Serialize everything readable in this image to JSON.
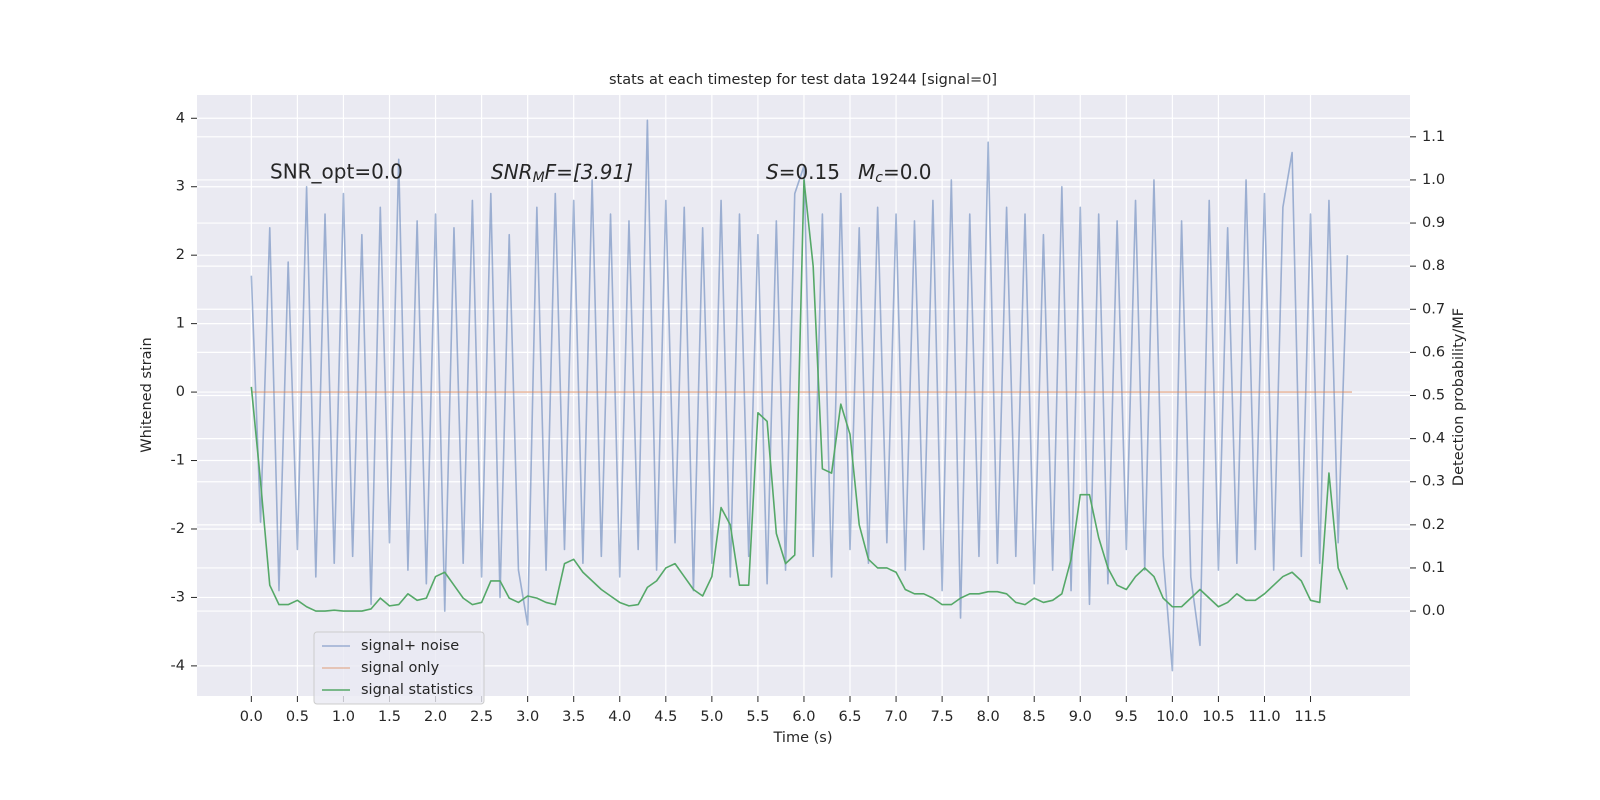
{
  "chart_data": {
    "type": "line",
    "title": "stats at each timestep for test data 19244 [signal=0]",
    "xlabel": "Time (s)",
    "ylabel": "Whitened strain",
    "y2label": "Detection probability/MF",
    "annotations": [
      "SNR_opt=0.0",
      [
        "SNR",
        "M",
        "F=[3.91]"
      ],
      [
        "S",
        "=0.15"
      ],
      [
        "M",
        "c",
        "=0.0"
      ]
    ],
    "xlim": [
      -0.59,
      12.58
    ],
    "ylim": [
      -4.44,
      4.34
    ],
    "y2lim": [
      -0.197,
      1.197
    ],
    "xticks": [
      {
        "value": 0,
        "label": "0.0"
      },
      0.5,
      {
        "value": 1,
        "label": "1.0"
      },
      1.5,
      {
        "value": 2,
        "label": "2.0"
      },
      2.5,
      {
        "value": 3,
        "label": "3.0"
      },
      3.5,
      {
        "value": 4,
        "label": "4.0"
      },
      4.5,
      {
        "value": 5,
        "label": "5.0"
      },
      5.5,
      {
        "value": 6,
        "label": "6.0"
      },
      6.5,
      {
        "value": 7,
        "label": "7.0"
      },
      7.5,
      {
        "value": 8,
        "label": "8.0"
      },
      8.5,
      {
        "value": 9,
        "label": "9.0"
      },
      9.5,
      {
        "value": 10,
        "label": "10.0"
      },
      10.5,
      {
        "value": 11,
        "label": "11.0"
      },
      11.5
    ],
    "yticks": [
      -4,
      -3,
      -2,
      -1,
      0,
      1,
      2,
      3,
      4
    ],
    "y2ticks": [
      {
        "value": 0,
        "label": "0.0"
      },
      0.1,
      0.2,
      0.3,
      0.4,
      0.5,
      0.6,
      0.7,
      0.8,
      0.9,
      {
        "value": 1,
        "label": "1.0"
      },
      1.1
    ],
    "grid": true,
    "legend": "lower left",
    "series": [
      {
        "name": "signal+ noise",
        "color": "#4c72b0",
        "opacity": 0.5,
        "x": [
          0,
          0.1,
          0.2,
          0.3,
          0.4,
          0.5,
          0.6,
          0.7,
          0.8,
          0.9,
          1,
          1.1,
          1.2,
          1.3,
          1.4,
          1.5,
          1.6,
          1.7,
          1.8,
          1.9,
          2,
          2.1,
          2.2,
          2.3,
          2.4,
          2.5,
          2.6,
          2.7,
          2.8,
          2.9,
          3,
          3.1,
          3.2,
          3.3,
          3.4,
          3.5,
          3.6,
          3.7,
          3.8,
          3.9,
          4,
          4.1,
          4.2,
          4.3,
          4.4,
          4.5,
          4.6,
          4.7,
          4.8,
          4.9,
          5,
          5.1,
          5.2,
          5.3,
          5.4,
          5.5,
          5.6,
          5.7,
          5.8,
          5.9,
          6,
          6.1,
          6.2,
          6.3,
          6.4,
          6.5,
          6.6,
          6.7,
          6.8,
          6.9,
          7,
          7.1,
          7.2,
          7.3,
          7.4,
          7.5,
          7.6,
          7.7,
          7.8,
          7.9,
          8,
          8.1,
          8.2,
          8.3,
          8.4,
          8.5,
          8.6,
          8.7,
          8.8,
          8.9,
          9,
          9.1,
          9.2,
          9.3,
          9.4,
          9.5,
          9.6,
          9.7,
          9.8,
          9.9,
          10,
          10.1,
          10.2,
          10.3,
          10.4,
          10.5,
          10.6,
          10.7,
          10.8,
          10.9,
          11,
          11.1,
          11.2,
          11.3,
          11.4,
          11.5,
          11.6,
          11.7,
          11.8,
          11.9
        ],
        "values": [
          1.7,
          -1.9,
          2.4,
          -2.9,
          1.9,
          -2.3,
          3.0,
          -2.7,
          2.6,
          -2.5,
          2.9,
          -2.4,
          2.3,
          -3.1,
          2.7,
          -2.2,
          3.4,
          -2.6,
          2.5,
          -2.8,
          2.6,
          -3.2,
          2.4,
          -2.5,
          2.8,
          -2.7,
          2.9,
          -3.0,
          2.3,
          -2.6,
          -3.4,
          2.7,
          -2.6,
          2.9,
          -2.3,
          2.8,
          -2.5,
          3.1,
          -2.4,
          2.6,
          -2.7,
          2.5,
          -2.3,
          3.97,
          -2.6,
          2.8,
          -2.2,
          2.7,
          -2.9,
          2.4,
          -2.5,
          2.8,
          -2.7,
          2.6,
          -2.4,
          2.3,
          -2.8,
          2.5,
          -2.6,
          2.9,
          3.3,
          -2.4,
          2.6,
          -2.7,
          2.9,
          -2.3,
          2.4,
          -2.5,
          2.7,
          -2.2,
          2.6,
          -2.6,
          2.5,
          -2.3,
          2.8,
          -2.9,
          3.1,
          -3.3,
          2.6,
          -2.4,
          3.65,
          -2.5,
          2.7,
          -2.4,
          2.6,
          -2.8,
          2.3,
          -2.6,
          3.0,
          -2.9,
          2.7,
          -3.1,
          2.6,
          -2.8,
          2.5,
          -2.3,
          2.8,
          -2.6,
          3.1,
          -2.4,
          -4.07,
          2.5,
          -2.7,
          -3.7,
          2.8,
          -2.6,
          2.4,
          -2.5,
          3.1,
          -2.3,
          2.9,
          -2.6,
          2.7,
          3.5,
          -2.4,
          2.6,
          -2.5,
          2.8,
          -2.2,
          2.0
        ]
      },
      {
        "name": "signal only",
        "color": "#dd8452",
        "opacity": 0.5,
        "x": [
          0,
          11.95
        ],
        "values": [
          0,
          0
        ]
      },
      {
        "name": "signal statistics",
        "color": "#55a868",
        "opacity": 1,
        "axis": "y2",
        "x": [
          0,
          0.1,
          0.2,
          0.3,
          0.4,
          0.5,
          0.6,
          0.7,
          0.8,
          0.9,
          1,
          1.1,
          1.2,
          1.3,
          1.4,
          1.5,
          1.6,
          1.7,
          1.8,
          1.9,
          2,
          2.1,
          2.2,
          2.3,
          2.4,
          2.5,
          2.6,
          2.7,
          2.8,
          2.9,
          3,
          3.1,
          3.2,
          3.3,
          3.4,
          3.5,
          3.6,
          3.7,
          3.8,
          3.9,
          4,
          4.1,
          4.2,
          4.3,
          4.4,
          4.5,
          4.6,
          4.7,
          4.8,
          4.9,
          5,
          5.1,
          5.2,
          5.3,
          5.4,
          5.5,
          5.6,
          5.7,
          5.8,
          5.9,
          6,
          6.1,
          6.2,
          6.3,
          6.4,
          6.5,
          6.6,
          6.7,
          6.8,
          6.9,
          7,
          7.1,
          7.2,
          7.3,
          7.4,
          7.5,
          7.6,
          7.7,
          7.8,
          7.9,
          8,
          8.1,
          8.2,
          8.3,
          8.4,
          8.5,
          8.6,
          8.7,
          8.8,
          8.9,
          9,
          9.1,
          9.2,
          9.3,
          9.4,
          9.5,
          9.6,
          9.7,
          9.8,
          9.9,
          10,
          10.1,
          10.2,
          10.3,
          10.4,
          10.5,
          10.6,
          10.7,
          10.8,
          10.9,
          11,
          11.1,
          11.2,
          11.3,
          11.4,
          11.5,
          11.6,
          11.7,
          11.8,
          11.9
        ],
        "values": [
          0.52,
          0.3,
          0.06,
          0.015,
          0.015,
          0.025,
          0.01,
          0,
          0,
          0.002,
          0,
          0,
          0,
          0.005,
          0.03,
          0.012,
          0.015,
          0.04,
          0.025,
          0.03,
          0.08,
          0.09,
          0.06,
          0.03,
          0.015,
          0.02,
          0.07,
          0.07,
          0.03,
          0.02,
          0.035,
          0.03,
          0.02,
          0.015,
          0.11,
          0.12,
          0.09,
          0.07,
          0.05,
          0.035,
          0.02,
          0.012,
          0.015,
          0.055,
          0.07,
          0.1,
          0.11,
          0.08,
          0.05,
          0.035,
          0.08,
          0.24,
          0.2,
          0.06,
          0.06,
          0.46,
          0.44,
          0.18,
          0.11,
          0.13,
          1.0,
          0.8,
          0.33,
          0.32,
          0.48,
          0.41,
          0.2,
          0.12,
          0.1,
          0.1,
          0.09,
          0.05,
          0.04,
          0.04,
          0.03,
          0.015,
          0.015,
          0.03,
          0.04,
          0.04,
          0.045,
          0.045,
          0.04,
          0.02,
          0.015,
          0.03,
          0.02,
          0.025,
          0.04,
          0.12,
          0.27,
          0.27,
          0.17,
          0.1,
          0.06,
          0.05,
          0.08,
          0.1,
          0.08,
          0.03,
          0.01,
          0.01,
          0.03,
          0.05,
          0.03,
          0.01,
          0.02,
          0.04,
          0.025,
          0.025,
          0.04,
          0.06,
          0.08,
          0.09,
          0.07,
          0.025,
          0.02,
          0.32,
          0.1,
          0.05
        ]
      }
    ]
  }
}
